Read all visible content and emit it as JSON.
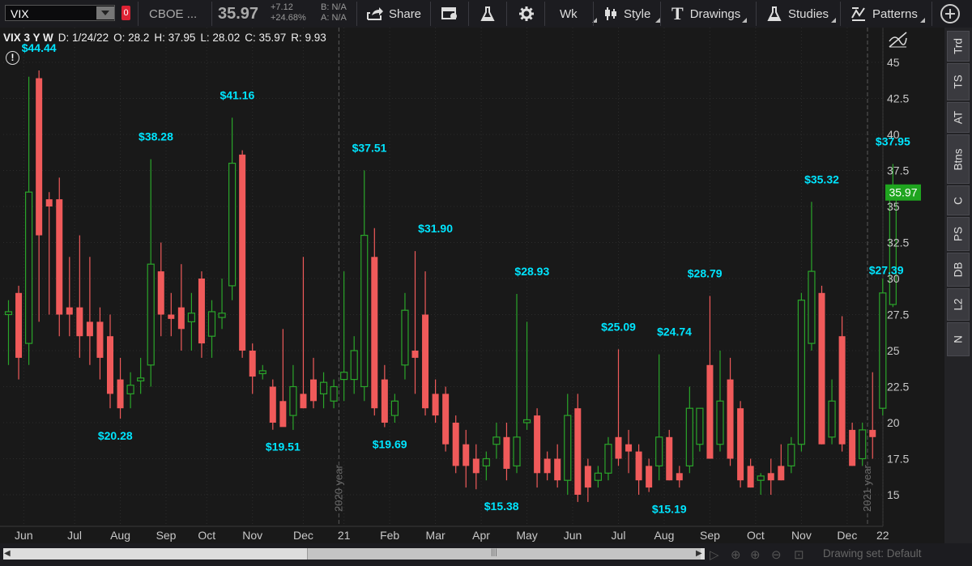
{
  "toolbar": {
    "symbol": "VIX",
    "exchange": "CBOE ...",
    "last": "35.97",
    "change": "+7.12",
    "change_pct": "+24.68%",
    "bid": "B: N/A",
    "ask": "A: N/A",
    "share_label": "Share",
    "aggregation": "Wk",
    "style_label": "Style",
    "drawings_label": "Drawings",
    "studies_label": "Studies",
    "patterns_label": "Patterns"
  },
  "info_bar": {
    "title": "VIX 3 Y W",
    "date": "D: 1/24/22",
    "open": "O: 28.2",
    "high": "H: 37.95",
    "low": "L: 28.02",
    "close": "C: 35.97",
    "range": "R: 9.93"
  },
  "side_tabs": [
    "Trd",
    "TS",
    "AT",
    "Btns",
    "C",
    "PS",
    "DB",
    "L2",
    "N"
  ],
  "footer": {
    "drawing_set": "Drawing set: Default"
  },
  "colors": {
    "up": "#2aa52a",
    "down": "#f05a5a",
    "price_tag": "#1fa51f",
    "annotation": "#00e5ff",
    "background": "#191919",
    "axis_text": "#c8c8c8"
  },
  "chart_data": {
    "type": "candlestick",
    "title": "VIX 3 Y W",
    "ylim": [
      13,
      46
    ],
    "y_ticks": [
      "15",
      "17.5",
      "20",
      "22.5",
      "25",
      "27.5",
      "30",
      "32.5",
      "35",
      "37.5",
      "40",
      "42.5",
      "45"
    ],
    "x_ticks": [
      {
        "label": "Jun",
        "i": 1.5
      },
      {
        "label": "Jul",
        "i": 6.5
      },
      {
        "label": "Aug",
        "i": 11
      },
      {
        "label": "Sep",
        "i": 15.5
      },
      {
        "label": "Oct",
        "i": 19.5
      },
      {
        "label": "Nov",
        "i": 24
      },
      {
        "label": "Dec",
        "i": 29
      },
      {
        "label": "21",
        "i": 33
      },
      {
        "label": "Feb",
        "i": 37.5
      },
      {
        "label": "Mar",
        "i": 42
      },
      {
        "label": "Apr",
        "i": 46.5
      },
      {
        "label": "May",
        "i": 51
      },
      {
        "label": "Jun",
        "i": 55.5
      },
      {
        "label": "Jul",
        "i": 60
      },
      {
        "label": "Aug",
        "i": 64.5
      },
      {
        "label": "Sep",
        "i": 69
      },
      {
        "label": "Oct",
        "i": 73.5
      },
      {
        "label": "Nov",
        "i": 78
      },
      {
        "label": "Dec",
        "i": 82.5
      },
      {
        "label": "22",
        "i": 86
      }
    ],
    "year_markers": [
      {
        "label": "2020 year",
        "i": 32.5
      },
      {
        "label": "2021 year",
        "i": 84.5
      }
    ],
    "last_price": "35.97",
    "annotations": [
      {
        "label": "$44.44",
        "i": 3,
        "y": 44.44,
        "pos": "above"
      },
      {
        "label": "$20.28",
        "i": 10.5,
        "y": 20.28,
        "pos": "below"
      },
      {
        "label": "$38.28",
        "i": 14.5,
        "y": 38.28,
        "pos": "above"
      },
      {
        "label": "$41.16",
        "i": 22.5,
        "y": 41.16,
        "pos": "above"
      },
      {
        "label": "$19.51",
        "i": 27,
        "y": 19.51,
        "pos": "below"
      },
      {
        "label": "$37.51",
        "i": 35.5,
        "y": 37.51,
        "pos": "above"
      },
      {
        "label": "$19.69",
        "i": 37.5,
        "y": 19.69,
        "pos": "below"
      },
      {
        "label": "$31.90",
        "i": 42,
        "y": 31.9,
        "pos": "above"
      },
      {
        "label": "$15.38",
        "i": 48.5,
        "y": 15.38,
        "pos": "below"
      },
      {
        "label": "$28.93",
        "i": 51.5,
        "y": 28.93,
        "pos": "above"
      },
      {
        "label": "$25.09",
        "i": 60,
        "y": 25.09,
        "pos": "above"
      },
      {
        "label": "$24.74",
        "i": 65.5,
        "y": 24.74,
        "pos": "above"
      },
      {
        "label": "$15.19",
        "i": 65,
        "y": 15.19,
        "pos": "below"
      },
      {
        "label": "$28.79",
        "i": 68.5,
        "y": 28.79,
        "pos": "above"
      },
      {
        "label": "$35.32",
        "i": 80,
        "y": 35.32,
        "pos": "above"
      },
      {
        "label": "$27.39",
        "i": 84,
        "y": 30.6,
        "pos": "right"
      },
      {
        "label": "$37.95",
        "i": 87,
        "y": 37.95,
        "pos": "above"
      }
    ],
    "candles": [
      {
        "o": 27.5,
        "h": 28.5,
        "l": 24.0,
        "c": 27.7
      },
      {
        "o": 29.0,
        "h": 29.5,
        "l": 23.0,
        "c": 24.5
      },
      {
        "o": 25.5,
        "h": 44.0,
        "l": 24.0,
        "c": 36.0
      },
      {
        "o": 43.9,
        "h": 44.44,
        "l": 27.0,
        "c": 33.0
      },
      {
        "o": 35.5,
        "h": 36.0,
        "l": 27.5,
        "c": 35.0
      },
      {
        "o": 35.5,
        "h": 37.0,
        "l": 26.0,
        "c": 27.5
      },
      {
        "o": 28.0,
        "h": 31.5,
        "l": 26.0,
        "c": 27.5
      },
      {
        "o": 28.0,
        "h": 33.0,
        "l": 24.5,
        "c": 26.0
      },
      {
        "o": 27.0,
        "h": 31.5,
        "l": 24.0,
        "c": 26.0
      },
      {
        "o": 27.0,
        "h": 28.0,
        "l": 23.0,
        "c": 24.5
      },
      {
        "o": 26.0,
        "h": 27.5,
        "l": 21.0,
        "c": 22.0
      },
      {
        "o": 23.0,
        "h": 24.5,
        "l": 20.28,
        "c": 21.0
      },
      {
        "o": 22.0,
        "h": 23.5,
        "l": 21.0,
        "c": 22.6
      },
      {
        "o": 22.9,
        "h": 24.5,
        "l": 22.0,
        "c": 23.1
      },
      {
        "o": 24.0,
        "h": 38.28,
        "l": 22.5,
        "c": 31.0
      },
      {
        "o": 30.5,
        "h": 32.5,
        "l": 26.0,
        "c": 27.5
      },
      {
        "o": 27.5,
        "h": 29.0,
        "l": 26.0,
        "c": 27.2
      },
      {
        "o": 28.0,
        "h": 31.0,
        "l": 25.0,
        "c": 26.5
      },
      {
        "o": 27.0,
        "h": 29.0,
        "l": 25.0,
        "c": 27.6
      },
      {
        "o": 30.0,
        "h": 30.5,
        "l": 24.5,
        "c": 25.5
      },
      {
        "o": 26.0,
        "h": 28.5,
        "l": 24.5,
        "c": 27.7
      },
      {
        "o": 27.3,
        "h": 30.0,
        "l": 26.5,
        "c": 27.6
      },
      {
        "o": 29.5,
        "h": 41.16,
        "l": 28.5,
        "c": 38.0
      },
      {
        "o": 38.6,
        "h": 38.9,
        "l": 24.5,
        "c": 25.0
      },
      {
        "o": 25.0,
        "h": 25.5,
        "l": 22.0,
        "c": 23.2
      },
      {
        "o": 23.4,
        "h": 24.0,
        "l": 23.0,
        "c": 23.6
      },
      {
        "o": 22.5,
        "h": 23.0,
        "l": 19.51,
        "c": 20.0
      },
      {
        "o": 21.5,
        "h": 26.5,
        "l": 20.0,
        "c": 19.7
      },
      {
        "o": 20.5,
        "h": 24.0,
        "l": 19.5,
        "c": 22.5
      },
      {
        "o": 22.0,
        "h": 31.5,
        "l": 21.0,
        "c": 21.0
      },
      {
        "o": 23.0,
        "h": 24.5,
        "l": 21.0,
        "c": 21.5
      },
      {
        "o": 22.0,
        "h": 23.5,
        "l": 21.0,
        "c": 22.8
      },
      {
        "o": 21.5,
        "h": 23.0,
        "l": 21.0,
        "c": 22.5
      },
      {
        "o": 23.0,
        "h": 30.5,
        "l": 21.5,
        "c": 23.5
      },
      {
        "o": 23.0,
        "h": 26.0,
        "l": 22.0,
        "c": 25.0
      },
      {
        "o": 22.5,
        "h": 37.51,
        "l": 21.5,
        "c": 33.0
      },
      {
        "o": 31.5,
        "h": 33.5,
        "l": 20.5,
        "c": 21.0
      },
      {
        "o": 23.0,
        "h": 24.0,
        "l": 19.69,
        "c": 20.0
      },
      {
        "o": 20.5,
        "h": 22.0,
        "l": 20.0,
        "c": 21.5
      },
      {
        "o": 24.0,
        "h": 29.0,
        "l": 23.0,
        "c": 27.8
      },
      {
        "o": 25.0,
        "h": 31.9,
        "l": 22.0,
        "c": 24.5
      },
      {
        "o": 27.5,
        "h": 30.5,
        "l": 20.5,
        "c": 21.0
      },
      {
        "o": 22.0,
        "h": 23.0,
        "l": 20.0,
        "c": 20.5
      },
      {
        "o": 22.0,
        "h": 22.5,
        "l": 18.0,
        "c": 18.5
      },
      {
        "o": 20.0,
        "h": 20.5,
        "l": 16.5,
        "c": 17.0
      },
      {
        "o": 18.5,
        "h": 19.5,
        "l": 15.5,
        "c": 17.0
      },
      {
        "o": 17.5,
        "h": 18.5,
        "l": 15.38,
        "c": 16.5
      },
      {
        "o": 17.0,
        "h": 18.0,
        "l": 16.0,
        "c": 17.5
      },
      {
        "o": 18.5,
        "h": 20.0,
        "l": 17.5,
        "c": 19.0
      },
      {
        "o": 19.0,
        "h": 20.0,
        "l": 16.0,
        "c": 16.8
      },
      {
        "o": 17.0,
        "h": 28.93,
        "l": 16.5,
        "c": 19.0
      },
      {
        "o": 20.0,
        "h": 27.0,
        "l": 19.5,
        "c": 20.2
      },
      {
        "o": 20.5,
        "h": 21.0,
        "l": 15.5,
        "c": 16.5
      },
      {
        "o": 17.5,
        "h": 18.0,
        "l": 16.0,
        "c": 16.5
      },
      {
        "o": 17.5,
        "h": 18.5,
        "l": 15.5,
        "c": 16.0
      },
      {
        "o": 16.0,
        "h": 22.0,
        "l": 15.0,
        "c": 20.5
      },
      {
        "o": 21.0,
        "h": 22.0,
        "l": 14.5,
        "c": 15.0
      },
      {
        "o": 17.0,
        "h": 17.5,
        "l": 14.5,
        "c": 15.5
      },
      {
        "o": 16.0,
        "h": 17.0,
        "l": 15.5,
        "c": 16.5
      },
      {
        "o": 16.5,
        "h": 19.0,
        "l": 16.0,
        "c": 18.5
      },
      {
        "o": 19.0,
        "h": 25.09,
        "l": 17.0,
        "c": 17.5
      },
      {
        "o": 18.5,
        "h": 19.5,
        "l": 16.5,
        "c": 18.0
      },
      {
        "o": 18.0,
        "h": 18.5,
        "l": 15.0,
        "c": 16.0
      },
      {
        "o": 17.0,
        "h": 17.5,
        "l": 15.19,
        "c": 15.5
      },
      {
        "o": 17.0,
        "h": 24.74,
        "l": 16.0,
        "c": 19.0
      },
      {
        "o": 19.0,
        "h": 19.5,
        "l": 16.0,
        "c": 16.0
      },
      {
        "o": 16.5,
        "h": 17.0,
        "l": 15.5,
        "c": 16.0
      },
      {
        "o": 17.0,
        "h": 22.5,
        "l": 16.5,
        "c": 21.0
      },
      {
        "o": 18.5,
        "h": 21.0,
        "l": 18.0,
        "c": 21.0
      },
      {
        "o": 24.0,
        "h": 28.79,
        "l": 17.5,
        "c": 17.5
      },
      {
        "o": 18.5,
        "h": 25.0,
        "l": 18.0,
        "c": 21.5
      },
      {
        "o": 23.0,
        "h": 24.5,
        "l": 17.0,
        "c": 17.5
      },
      {
        "o": 21.0,
        "h": 21.5,
        "l": 15.5,
        "c": 16.0
      },
      {
        "o": 17.0,
        "h": 17.5,
        "l": 15.5,
        "c": 15.5
      },
      {
        "o": 16.0,
        "h": 16.5,
        "l": 15.0,
        "c": 16.3
      },
      {
        "o": 16.5,
        "h": 17.5,
        "l": 15.0,
        "c": 16.0
      },
      {
        "o": 17.0,
        "h": 18.5,
        "l": 16.0,
        "c": 16.0
      },
      {
        "o": 17.0,
        "h": 19.0,
        "l": 16.5,
        "c": 18.5
      },
      {
        "o": 18.5,
        "h": 29.0,
        "l": 18.0,
        "c": 28.5
      },
      {
        "o": 25.5,
        "h": 35.32,
        "l": 25.0,
        "c": 30.5
      },
      {
        "o": 29.0,
        "h": 29.5,
        "l": 18.5,
        "c": 18.5
      },
      {
        "o": 19.0,
        "h": 23.0,
        "l": 18.5,
        "c": 21.5
      },
      {
        "o": 26.0,
        "h": 27.39,
        "l": 18.0,
        "c": 18.5
      },
      {
        "o": 19.5,
        "h": 20.0,
        "l": 17.0,
        "c": 17.0
      },
      {
        "o": 17.5,
        "h": 20.0,
        "l": 17.0,
        "c": 19.5
      },
      {
        "o": 19.5,
        "h": 23.5,
        "l": 17.5,
        "c": 19.0
      },
      {
        "o": 21.0,
        "h": 30.0,
        "l": 20.5,
        "c": 29.0
      },
      {
        "o": 28.2,
        "h": 37.95,
        "l": 28.02,
        "c": 35.97
      }
    ]
  }
}
